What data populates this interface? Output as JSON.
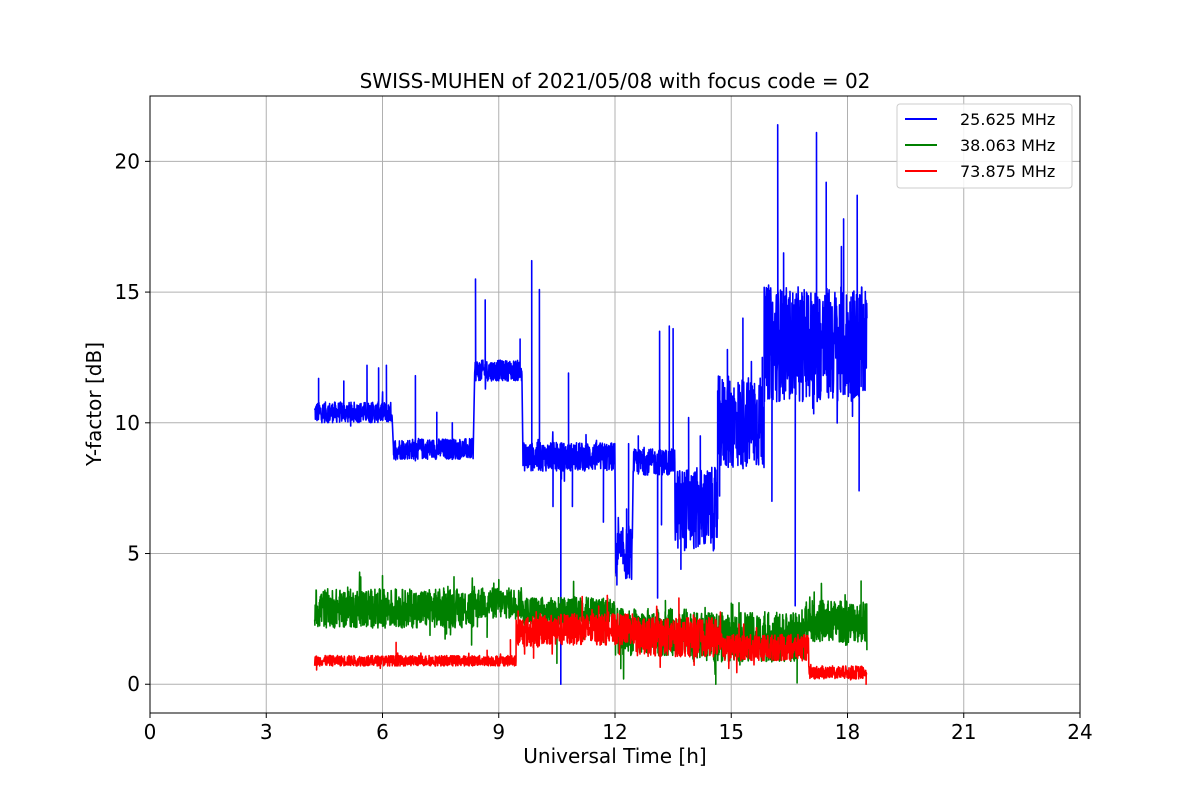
{
  "chart_data": {
    "type": "line",
    "title": "SWISS-MUHEN of 2021/05/08 with focus code = 02",
    "xlabel": "Universal Time [h]",
    "ylabel": "Y-factor [dB]",
    "xlim": [
      0,
      24
    ],
    "ylim": [
      -1.1,
      22.5
    ],
    "xticks": [
      0,
      3,
      6,
      9,
      12,
      15,
      18,
      21,
      24
    ],
    "yticks": [
      0,
      5,
      10,
      15,
      20
    ],
    "grid": true,
    "legend_position": "top-right",
    "series": [
      {
        "name": "25.625 MHz",
        "color": "#0000ff",
        "segments": [
          {
            "x0": 4.25,
            "x1": 6.25,
            "base": 10.4,
            "amp": 0.4,
            "spikes": [
              [
                4.35,
                11.7
              ],
              [
                5.0,
                11.6
              ],
              [
                5.6,
                12.2
              ],
              [
                5.9,
                12.1
              ],
              [
                6.1,
                12.2
              ]
            ]
          },
          {
            "x0": 6.28,
            "x1": 8.35,
            "base": 9.0,
            "amp": 0.4,
            "spikes": [
              [
                6.85,
                11.8
              ],
              [
                7.4,
                10.4
              ],
              [
                7.8,
                10.0
              ]
            ]
          },
          {
            "x0": 8.38,
            "x1": 9.6,
            "base": 12.0,
            "amp": 0.4,
            "spikes": [
              [
                8.4,
                15.5
              ],
              [
                8.65,
                14.7
              ],
              [
                9.55,
                13.2
              ]
            ]
          },
          {
            "x0": 9.62,
            "x1": 12.0,
            "base": 8.7,
            "amp": 0.55,
            "spikes": [
              [
                9.85,
                16.2
              ],
              [
                10.05,
                15.1
              ],
              [
                10.6,
                0.0
              ],
              [
                10.6,
                3.0
              ],
              [
                10.8,
                11.9
              ],
              [
                10.4,
                6.8
              ],
              [
                10.9,
                6.8
              ],
              [
                11.7,
                6.2
              ]
            ]
          },
          {
            "x0": 12.02,
            "x1": 12.45,
            "base": 5.0,
            "amp": 1.0,
            "spikes": [
              [
                12.05,
                3.8
              ],
              [
                12.3,
                6.7
              ],
              [
                12.35,
                9.2
              ]
            ]
          },
          {
            "x0": 12.47,
            "x1": 13.55,
            "base": 8.5,
            "amp": 0.5,
            "spikes": [
              [
                12.6,
                9.5
              ],
              [
                13.1,
                3.3
              ],
              [
                13.15,
                13.5
              ],
              [
                13.2,
                6.1
              ],
              [
                13.4,
                13.7
              ],
              [
                13.5,
                13.6
              ]
            ]
          },
          {
            "x0": 13.55,
            "x1": 14.65,
            "base": 6.7,
            "amp": 1.6,
            "spikes": [
              [
                13.7,
                4.4
              ],
              [
                13.9,
                10.2
              ],
              [
                14.2,
                9.5
              ]
            ]
          },
          {
            "x0": 14.65,
            "x1": 15.85,
            "base": 10.0,
            "amp": 1.8,
            "spikes": [
              [
                14.7,
                7.2
              ],
              [
                14.9,
                12.8
              ],
              [
                15.3,
                14.0
              ],
              [
                15.6,
                11.5
              ],
              [
                15.8,
                12.5
              ]
            ]
          },
          {
            "x0": 15.85,
            "x1": 18.5,
            "base": 13.0,
            "amp": 2.2,
            "spikes": [
              [
                16.05,
                7.0
              ],
              [
                16.2,
                21.4
              ],
              [
                16.35,
                16.5
              ],
              [
                16.65,
                3.0
              ],
              [
                16.9,
                14.0
              ],
              [
                17.2,
                21.1
              ],
              [
                17.45,
                19.2
              ],
              [
                17.9,
                17.8
              ],
              [
                18.25,
                18.7
              ],
              [
                18.3,
                7.4
              ],
              [
                18.5,
                14.0
              ]
            ]
          }
        ]
      },
      {
        "name": "38.063 MHz",
        "color": "#008000",
        "segments": [
          {
            "x0": 4.25,
            "x1": 8.35,
            "base": 2.9,
            "amp": 0.75,
            "spikes": [
              [
                6.0,
                4.15
              ],
              [
                8.3,
                1.5
              ]
            ]
          },
          {
            "x0": 8.35,
            "x1": 9.6,
            "base": 3.1,
            "amp": 0.6,
            "spikes": [
              [
                8.45,
                2.2
              ],
              [
                8.7,
                1.8
              ],
              [
                9.0,
                4.0
              ]
            ]
          },
          {
            "x0": 9.6,
            "x1": 12.0,
            "base": 2.8,
            "amp": 0.55,
            "spikes": [
              [
                10.5,
                0.8
              ],
              [
                11.7,
                1.6
              ]
            ]
          },
          {
            "x0": 12.0,
            "x1": 14.0,
            "base": 2.0,
            "amp": 0.9,
            "spikes": [
              [
                12.15,
                0.6
              ],
              [
                13.3,
                3.2
              ]
            ]
          },
          {
            "x0": 14.0,
            "x1": 16.9,
            "base": 1.8,
            "amp": 0.95,
            "spikes": [
              [
                14.6,
                0.0
              ],
              [
                15.0,
                3.1
              ],
              [
                16.7,
                0.05
              ]
            ]
          },
          {
            "x0": 16.9,
            "x1": 18.5,
            "base": 2.4,
            "amp": 0.8,
            "spikes": [
              [
                18.35,
                3.95
              ],
              [
                18.5,
                1.3
              ]
            ]
          }
        ]
      },
      {
        "name": "73.875 MHz",
        "color": "#ff0000",
        "segments": [
          {
            "x0": 4.25,
            "x1": 9.45,
            "base": 0.9,
            "amp": 0.2,
            "spikes": [
              [
                4.3,
                0.55
              ],
              [
                6.35,
                1.6
              ],
              [
                8.7,
                1.3
              ],
              [
                9.3,
                1.7
              ]
            ]
          },
          {
            "x0": 9.45,
            "x1": 10.05,
            "base": 2.0,
            "amp": 0.6,
            "spikes": [
              [
                9.5,
                2.8
              ],
              [
                9.9,
                1.0
              ]
            ]
          },
          {
            "x0": 10.05,
            "x1": 12.5,
            "base": 2.1,
            "amp": 0.6,
            "spikes": [
              [
                11.8,
                3.4
              ]
            ]
          },
          {
            "x0": 12.5,
            "x1": 14.8,
            "base": 1.8,
            "amp": 0.75,
            "spikes": [
              [
                13.65,
                3.3
              ]
            ]
          },
          {
            "x0": 14.8,
            "x1": 17.0,
            "base": 1.4,
            "amp": 0.5,
            "spikes": [
              [
                15.2,
                2.3
              ]
            ]
          },
          {
            "x0": 17.0,
            "x1": 18.5,
            "base": 0.45,
            "amp": 0.25,
            "spikes": [
              [
                18.48,
                0.0
              ]
            ]
          }
        ]
      }
    ]
  }
}
